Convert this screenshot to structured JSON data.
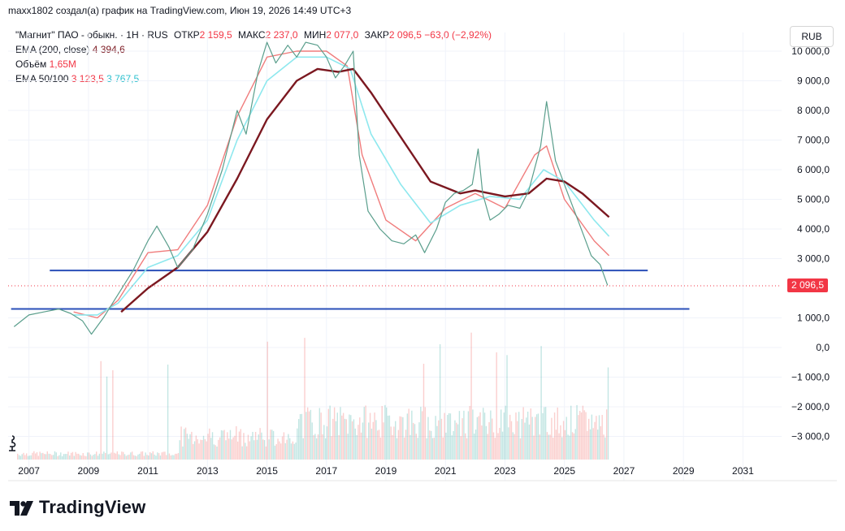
{
  "caption": "maxx1802 создал(а) график на TradingView.com, Июн 19, 2026 14:49 UTC+3",
  "legend": {
    "symbol": "\"Магнит\" ПАО - обыкн. · 1Н · RUS",
    "open_label": "ОТКР",
    "open_value": "2 159,5",
    "high_label": "МАКС",
    "high_value": "2 237,0",
    "low_label": "МИН",
    "low_value": "2 077,0",
    "close_label": "ЗАКР",
    "close_value": "2 096,5",
    "change": "−63,0 (−2,92%)",
    "ema200_label": "EMA (200, close)",
    "ema200_value": "4 394,6",
    "volume_label": "Объём",
    "volume_value": "1,65M",
    "ema50100_label": "EMA 50/100",
    "ema50_value": "3 123,5",
    "ema100_value": "3 767,5"
  },
  "currency_button": "RUB",
  "last_price_badge": "2 096,5",
  "brand": "TradingView",
  "colors": {
    "up": "#26a69a",
    "down": "#ef5350",
    "ema200": "#7b1820",
    "ema50": "#f07c7c",
    "ema100": "#8ee8ee",
    "hline": "#2a4fb8",
    "badge": "#f23645"
  },
  "chart_data": {
    "type": "line",
    "title": "\"Магнит\" ПАО - обыкн.",
    "x_ticks": [
      "2007",
      "2009",
      "2011",
      "2013",
      "2015",
      "2017",
      "2019",
      "2021",
      "2023",
      "2025",
      "2027",
      "2029",
      "2031"
    ],
    "y_ticks": [
      "10 000,0",
      "9 000,0",
      "8 000,0",
      "7 000,0",
      "6 000,0",
      "5 000,0",
      "4 000,0",
      "3 000,0",
      "1 000,0",
      "0,0",
      "−1 000,0",
      "−2 000,0",
      "−3 000,0"
    ],
    "ylim": [
      -3700,
      10700
    ],
    "xlim": [
      2006.3,
      2032.3
    ],
    "grid": true,
    "series": [
      {
        "name": "\"Магнит\" ПАО - обыкн.",
        "x": [
          2006.5,
          2007.0,
          2007.5,
          2008.0,
          2008.4,
          2008.8,
          2009.1,
          2009.5,
          2010.0,
          2010.5,
          2011.0,
          2011.3,
          2011.7,
          2012.0,
          2012.5,
          2013.0,
          2013.5,
          2014.0,
          2014.3,
          2014.7,
          2015.0,
          2015.3,
          2015.7,
          2016.0,
          2016.3,
          2016.7,
          2017.0,
          2017.3,
          2017.6,
          2017.9,
          2018.1,
          2018.4,
          2018.8,
          2019.2,
          2019.6,
          2020.0,
          2020.3,
          2020.7,
          2021.0,
          2021.3,
          2021.6,
          2021.9,
          2022.1,
          2022.25,
          2022.5,
          2022.8,
          2023.1,
          2023.5,
          2023.8,
          2024.2,
          2024.4,
          2024.7,
          2025.0,
          2025.3,
          2025.6,
          2025.9,
          2026.2,
          2026.45
        ],
        "values": [
          700,
          1100,
          1200,
          1300,
          1150,
          900,
          450,
          1000,
          1800,
          2600,
          3600,
          4100,
          3400,
          2700,
          3300,
          4500,
          6000,
          8000,
          7200,
          9300,
          10300,
          9600,
          10200,
          9800,
          10300,
          10200,
          9800,
          9100,
          9500,
          10000,
          6500,
          4600,
          4000,
          3600,
          3500,
          3800,
          3200,
          4000,
          4900,
          5200,
          5300,
          5500,
          6700,
          5200,
          4300,
          4500,
          4800,
          4700,
          5300,
          6800,
          8300,
          6300,
          5500,
          4700,
          3900,
          3100,
          2800,
          2100
        ]
      },
      {
        "name": "EMA 50",
        "x": [
          2008.5,
          2009.3,
          2010.0,
          2011.0,
          2012.0,
          2013.0,
          2014.0,
          2015.0,
          2016.0,
          2017.0,
          2017.7,
          2018.2,
          2019.0,
          2020.0,
          2021.0,
          2022.0,
          2023.0,
          2024.0,
          2024.4,
          2025.0,
          2026.0,
          2026.5
        ],
        "values": [
          1200,
          1000,
          1600,
          3200,
          3300,
          4800,
          7800,
          9800,
          10000,
          10000,
          9500,
          6500,
          4300,
          3600,
          4700,
          5200,
          4700,
          6500,
          6800,
          5000,
          3600,
          3100
        ]
      },
      {
        "name": "EMA 100",
        "x": [
          2008.5,
          2009.3,
          2010.0,
          2011.0,
          2012.0,
          2013.0,
          2014.0,
          2015.0,
          2016.0,
          2017.0,
          2017.8,
          2018.5,
          2019.5,
          2020.5,
          2021.5,
          2022.5,
          2023.5,
          2024.3,
          2025.0,
          2026.0,
          2026.5
        ],
        "values": [
          1100,
          1100,
          1500,
          2700,
          3100,
          4300,
          7000,
          9000,
          9800,
          9800,
          9400,
          7200,
          5500,
          4200,
          4800,
          5100,
          5000,
          6000,
          5600,
          4300,
          3750
        ]
      },
      {
        "name": "EMA 200",
        "x": [
          2010.1,
          2011.0,
          2012.0,
          2013.0,
          2014.0,
          2015.0,
          2016.0,
          2016.7,
          2017.4,
          2017.9,
          2018.5,
          2019.5,
          2020.5,
          2021.5,
          2022.0,
          2023.0,
          2023.8,
          2024.4,
          2025.0,
          2025.6,
          2026.5
        ],
        "values": [
          1200,
          2000,
          2700,
          3900,
          5700,
          7700,
          9000,
          9400,
          9300,
          9400,
          8600,
          7100,
          5600,
          5200,
          5300,
          5100,
          5200,
          5700,
          5600,
          5200,
          4400
        ]
      }
    ],
    "horizontal_lines": [
      {
        "value": 2600,
        "x": [
          2007.7,
          2027.8
        ]
      },
      {
        "value": 1300,
        "x": [
          2006.4,
          2029.2
        ]
      }
    ],
    "last_price": 2096.5
  }
}
